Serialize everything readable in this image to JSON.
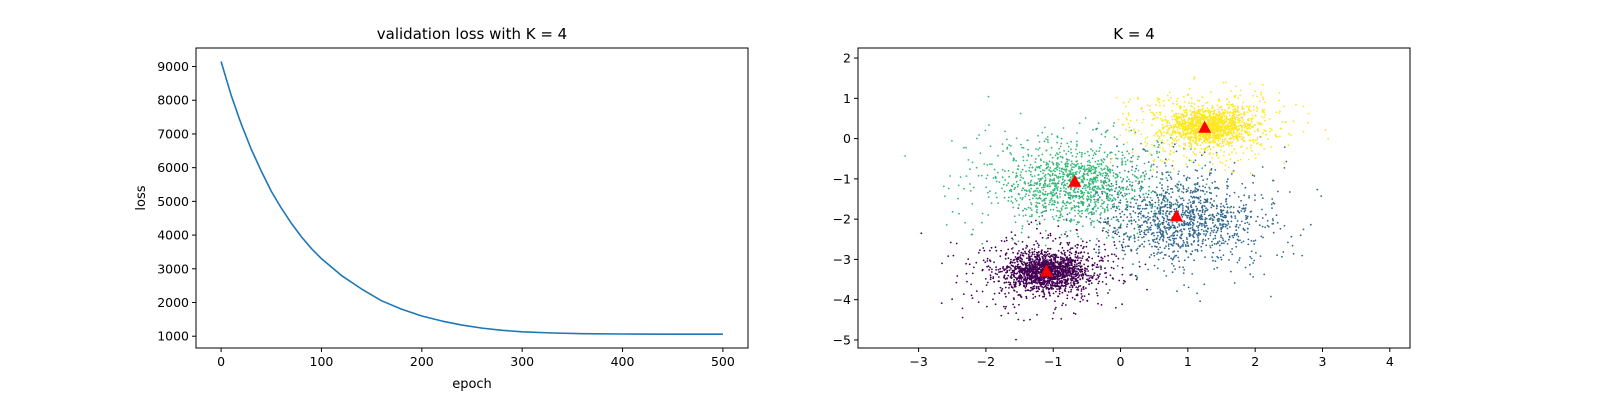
{
  "chart_data": [
    {
      "type": "line",
      "title": "validation loss with K = 4",
      "xlabel": "epoch",
      "ylabel": "loss",
      "xlim": [
        -25,
        525
      ],
      "ylim": [
        650,
        9550
      ],
      "xticks": [
        0,
        100,
        200,
        300,
        400,
        500
      ],
      "yticks": [
        1000,
        2000,
        3000,
        4000,
        5000,
        6000,
        7000,
        8000,
        9000
      ],
      "color": "#1f77b4",
      "grid": false,
      "series": [
        {
          "x": [
            0,
            10,
            20,
            30,
            40,
            50,
            60,
            70,
            80,
            90,
            100,
            120,
            140,
            160,
            180,
            200,
            220,
            240,
            260,
            280,
            300,
            330,
            360,
            400,
            450,
            500
          ],
          "y": [
            9150,
            8150,
            7300,
            6550,
            5900,
            5300,
            4800,
            4350,
            3950,
            3600,
            3300,
            2800,
            2400,
            2050,
            1800,
            1600,
            1450,
            1330,
            1240,
            1175,
            1130,
            1095,
            1075,
            1065,
            1060,
            1060
          ]
        }
      ]
    },
    {
      "type": "scatter",
      "title": "K = 4",
      "xlabel": "",
      "ylabel": "",
      "xlim": [
        -3.9,
        4.3
      ],
      "ylim": [
        -5.2,
        2.25
      ],
      "xticks": [
        -3,
        -2,
        -1,
        0,
        1,
        2,
        3,
        4
      ],
      "yticks": [
        -5,
        -4,
        -3,
        -2,
        -1,
        0,
        1,
        2
      ],
      "grid": false,
      "clusters": [
        {
          "color": "#440154",
          "center": [
            -1.1,
            -3.3
          ],
          "core_spread": [
            0.28,
            0.22
          ],
          "halo_spread": [
            0.55,
            0.45
          ],
          "points": 1800
        },
        {
          "color": "#31688e",
          "center": [
            0.9,
            -2.0
          ],
          "core_spread": [
            0.55,
            0.45
          ],
          "halo_spread": [
            0.8,
            0.75
          ],
          "points": 1250
        },
        {
          "color": "#35b779",
          "center": [
            -0.7,
            -1.1
          ],
          "core_spread": [
            0.5,
            0.45
          ],
          "halo_spread": [
            0.85,
            0.75
          ],
          "points": 1250
        },
        {
          "color": "#fde725",
          "center": [
            1.3,
            0.3
          ],
          "core_spread": [
            0.28,
            0.2
          ],
          "halo_spread": [
            0.6,
            0.45
          ],
          "points": 1700
        }
      ],
      "centroids": {
        "color": "#ff0000",
        "marker": "triangle",
        "points": [
          {
            "x": -1.1,
            "y": -3.3
          },
          {
            "x": 0.83,
            "y": -1.93
          },
          {
            "x": -0.68,
            "y": -1.07
          },
          {
            "x": 1.25,
            "y": 0.27
          }
        ]
      }
    }
  ]
}
